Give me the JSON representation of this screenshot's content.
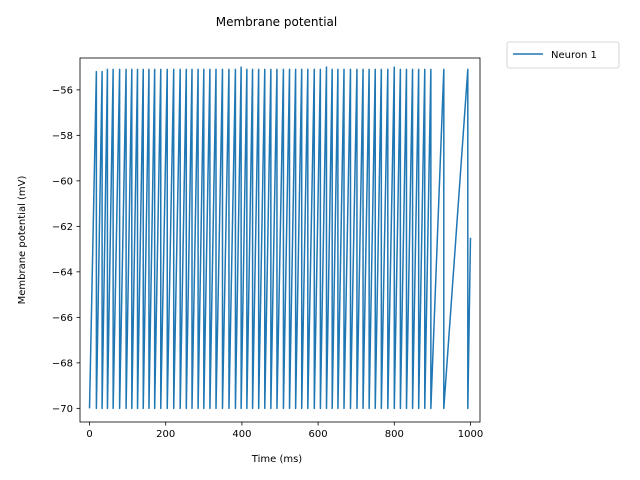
{
  "chart_data": {
    "type": "line",
    "title": "Membrane potential",
    "xlabel": "Time (ms)",
    "ylabel": "Membrane potential (mV)",
    "xlim": [
      -25,
      1025
    ],
    "ylim": [
      -70.6,
      -54.6
    ],
    "x_ticks": [
      0,
      200,
      400,
      600,
      800,
      1000
    ],
    "y_ticks": [
      -70,
      -68,
      -66,
      -64,
      -62,
      -60,
      -58,
      -56
    ],
    "x_tick_labels": [
      "0",
      "200",
      "400",
      "600",
      "800",
      "1000"
    ],
    "y_tick_labels": [
      "−70",
      "−68",
      "−66",
      "−64",
      "−62",
      "−60",
      "−58",
      "−56"
    ],
    "grid": false,
    "legend": {
      "position": "outside-top-right",
      "entries": [
        "Neuron 1"
      ]
    },
    "series": [
      {
        "name": "Neuron 1",
        "color": "#1f77b4",
        "rest": -70,
        "end_value": -62.5,
        "spikes": [
          {
            "t": 18,
            "v": -55.2
          },
          {
            "t": 33,
            "v": -55.2
          },
          {
            "t": 47,
            "v": -55.1
          },
          {
            "t": 62,
            "v": -55.1
          },
          {
            "t": 79,
            "v": -55.1
          },
          {
            "t": 96,
            "v": -55.1
          },
          {
            "t": 111,
            "v": -55.1
          },
          {
            "t": 126,
            "v": -55.1
          },
          {
            "t": 141,
            "v": -55.1
          },
          {
            "t": 156,
            "v": -55.1
          },
          {
            "t": 171,
            "v": -55.1
          },
          {
            "t": 187,
            "v": -55.1
          },
          {
            "t": 204,
            "v": -55.1
          },
          {
            "t": 221,
            "v": -55.1
          },
          {
            "t": 238,
            "v": -55.1
          },
          {
            "t": 254,
            "v": -55.1
          },
          {
            "t": 269,
            "v": -55.1
          },
          {
            "t": 285,
            "v": -55.1
          },
          {
            "t": 300,
            "v": -55.1
          },
          {
            "t": 316,
            "v": -55.1
          },
          {
            "t": 332,
            "v": -55.1
          },
          {
            "t": 349,
            "v": -55.1
          },
          {
            "t": 366,
            "v": -55.1
          },
          {
            "t": 383,
            "v": -55.1
          },
          {
            "t": 398,
            "v": -55.0
          },
          {
            "t": 413,
            "v": -55.1
          },
          {
            "t": 428,
            "v": -55.1
          },
          {
            "t": 444,
            "v": -55.1
          },
          {
            "t": 460,
            "v": -55.1
          },
          {
            "t": 476,
            "v": -55.1
          },
          {
            "t": 492,
            "v": -55.1
          },
          {
            "t": 509,
            "v": -55.1
          },
          {
            "t": 525,
            "v": -55.1
          },
          {
            "t": 541,
            "v": -55.1
          },
          {
            "t": 557,
            "v": -55.1
          },
          {
            "t": 573,
            "v": -55.1
          },
          {
            "t": 590,
            "v": -55.1
          },
          {
            "t": 606,
            "v": -55.1
          },
          {
            "t": 622,
            "v": -55.0
          },
          {
            "t": 637,
            "v": -55.1
          },
          {
            "t": 652,
            "v": -55.1
          },
          {
            "t": 668,
            "v": -55.1
          },
          {
            "t": 685,
            "v": -55.1
          },
          {
            "t": 702,
            "v": -55.1
          },
          {
            "t": 718,
            "v": -55.1
          },
          {
            "t": 734,
            "v": -55.1
          },
          {
            "t": 750,
            "v": -55.1
          },
          {
            "t": 766,
            "v": -55.1
          },
          {
            "t": 783,
            "v": -55.1
          },
          {
            "t": 800,
            "v": -55.0
          },
          {
            "t": 816,
            "v": -55.1
          },
          {
            "t": 832,
            "v": -55.1
          },
          {
            "t": 848,
            "v": -55.1
          },
          {
            "t": 864,
            "v": -55.1
          },
          {
            "t": 880,
            "v": -55.1
          },
          {
            "t": 896,
            "v": -55.1
          },
          {
            "t": 930,
            "v": -55.1
          },
          {
            "t": 993,
            "v": -55.1
          }
        ]
      }
    ]
  }
}
